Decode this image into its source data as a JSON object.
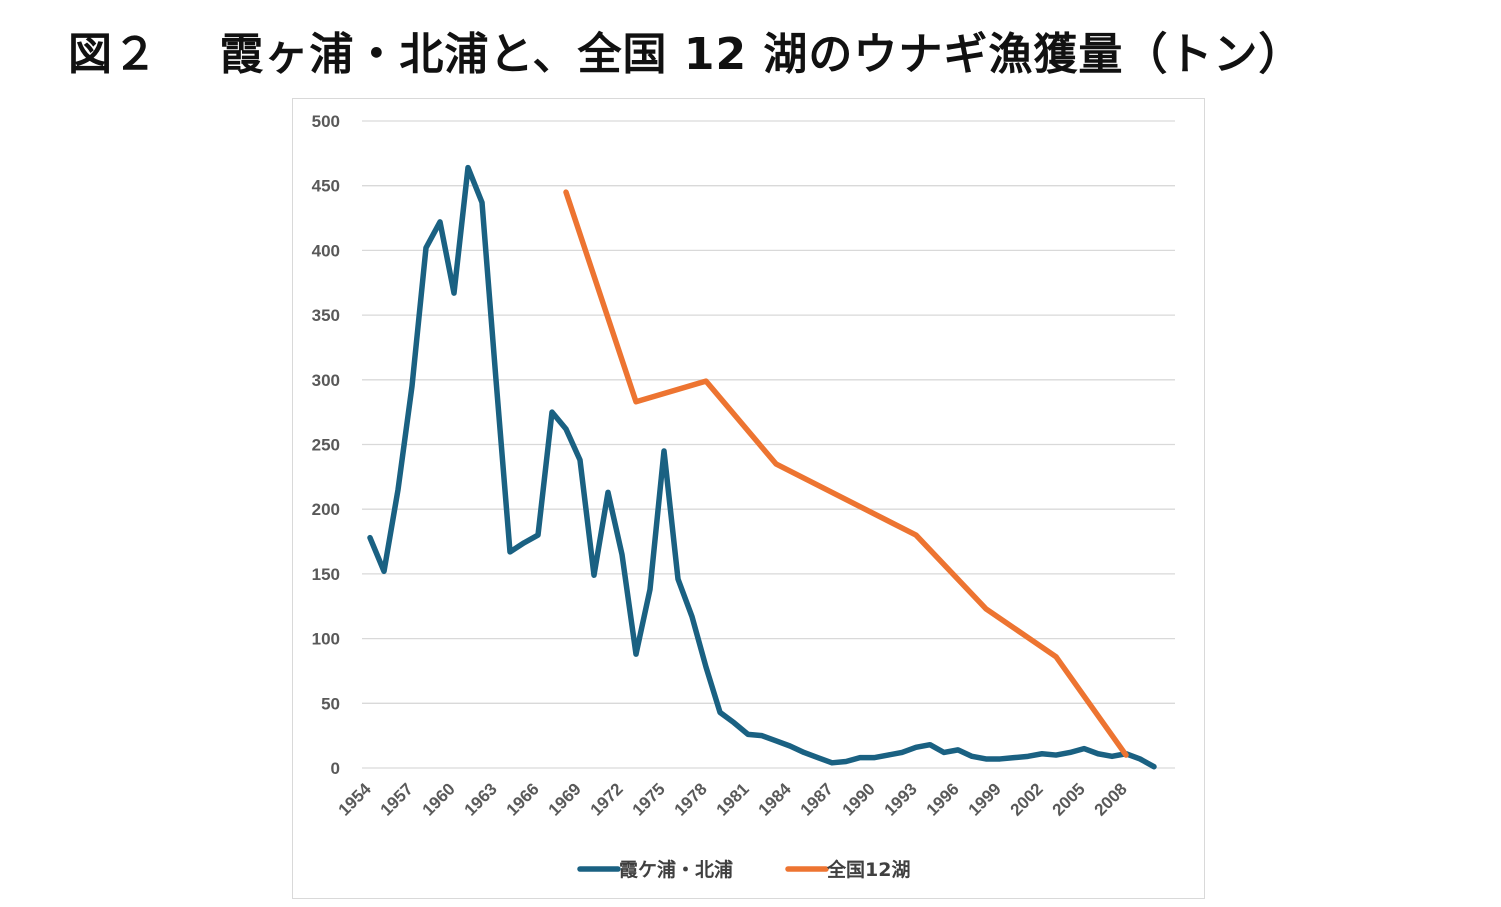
{
  "title": "図２　 霞ヶ浦・北浦と、全国 12 湖のウナギ漁獲量（トン）",
  "chart_data": {
    "type": "line",
    "title": "図２　 霞ヶ浦・北浦と、全国 12 湖のウナギ漁獲量（トン）",
    "xlabel": "",
    "ylabel": "",
    "ylim": [
      0,
      500
    ],
    "yticks": [
      0,
      50,
      100,
      150,
      200,
      250,
      300,
      350,
      400,
      450,
      500
    ],
    "xticks": [
      "1954",
      "1957",
      "1960",
      "1963",
      "1966",
      "1969",
      "1972",
      "1975",
      "1978",
      "1981",
      "1984",
      "1987",
      "1990",
      "1993",
      "1996",
      "1999",
      "2002",
      "2005",
      "2008"
    ],
    "xlim": [
      1954,
      2010
    ],
    "grid": true,
    "legend_position": "bottom",
    "series": [
      {
        "name": "霞ケ浦・北浦",
        "color": "#1a6182",
        "x": [
          1954,
          1955,
          1956,
          1957,
          1958,
          1959,
          1960,
          1961,
          1962,
          1963,
          1964,
          1965,
          1966,
          1967,
          1968,
          1969,
          1970,
          1971,
          1972,
          1973,
          1974,
          1975,
          1976,
          1977,
          1978,
          1979,
          1980,
          1981,
          1982,
          1983,
          1984,
          1985,
          1986,
          1987,
          1988,
          1989,
          1990,
          1991,
          1992,
          1993,
          1994,
          1995,
          1996,
          1997,
          1998,
          1999,
          2000,
          2001,
          2002,
          2003,
          2004,
          2005,
          2006,
          2007,
          2008,
          2009,
          2010
        ],
        "values": [
          178,
          152,
          215,
          295,
          402,
          422,
          367,
          464,
          437,
          300,
          167,
          174,
          180,
          275,
          262,
          238,
          149,
          213,
          165,
          88,
          138,
          245,
          146,
          117,
          78,
          43,
          35,
          26,
          25,
          21,
          17,
          12,
          8,
          4,
          5,
          8,
          8,
          10,
          12,
          16,
          18,
          12,
          14,
          9,
          7,
          7,
          8,
          9,
          11,
          10,
          12,
          15,
          11,
          9,
          11,
          7,
          1
        ]
      },
      {
        "name": "全国12湖",
        "color": "#ed7431",
        "x": [
          1968,
          1973,
          1978,
          1983,
          1993,
          1998,
          2003,
          2008
        ],
        "values": [
          445,
          283,
          299,
          235,
          180,
          123,
          86,
          10
        ]
      }
    ]
  }
}
